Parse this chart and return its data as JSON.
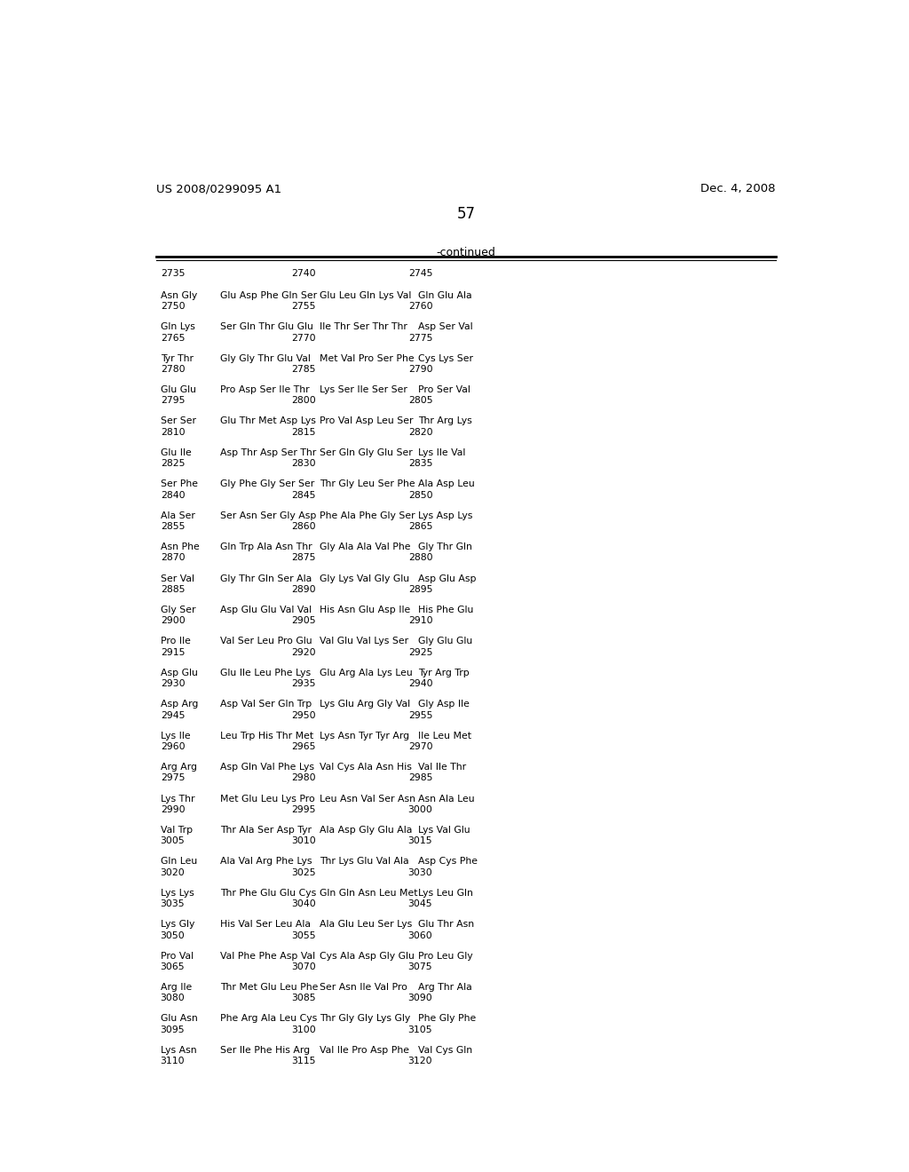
{
  "header_left": "US 2008/0299095 A1",
  "header_right": "Dec. 4, 2008",
  "page_number": "57",
  "continued_label": "-continued",
  "background_color": "#ffffff",
  "text_color": "#000000",
  "first_numbers": [
    "2735",
    "2740",
    "2745"
  ],
  "sequence_data": [
    [
      "Asn Gly",
      "Glu Asp Phe Gln Ser",
      "Glu Leu Gln Lys Val",
      "Gln Glu Ala",
      "2750",
      "2755",
      "2760"
    ],
    [
      "Gln Lys",
      "Ser Gln Thr Glu Glu",
      "Ile Thr Ser Thr Thr",
      "Asp Ser Val",
      "2765",
      "2770",
      "2775"
    ],
    [
      "Tyr Thr",
      "Gly Gly Thr Glu Val",
      "Met Val Pro Ser Phe",
      "Cys Lys Ser",
      "2780",
      "2785",
      "2790"
    ],
    [
      "Glu Glu",
      "Pro Asp Ser Ile Thr",
      "Lys Ser Ile Ser Ser",
      "Pro Ser Val",
      "2795",
      "2800",
      "2805"
    ],
    [
      "Ser Ser",
      "Glu Thr Met Asp Lys",
      "Pro Val Asp Leu Ser",
      "Thr Arg Lys",
      "2810",
      "2815",
      "2820"
    ],
    [
      "Glu Ile",
      "Asp Thr Asp Ser Thr",
      "Ser Gln Gly Glu Ser",
      "Lys Ile Val",
      "2825",
      "2830",
      "2835"
    ],
    [
      "Ser Phe",
      "Gly Phe Gly Ser Ser",
      "Thr Gly Leu Ser Phe",
      "Ala Asp Leu",
      "2840",
      "2845",
      "2850"
    ],
    [
      "Ala Ser",
      "Ser Asn Ser Gly Asp",
      "Phe Ala Phe Gly Ser",
      "Lys Asp Lys",
      "2855",
      "2860",
      "2865"
    ],
    [
      "Asn Phe",
      "Gln Trp Ala Asn Thr",
      "Gly Ala Ala Val Phe",
      "Gly Thr Gln",
      "2870",
      "2875",
      "2880"
    ],
    [
      "Ser Val",
      "Gly Thr Gln Ser Ala",
      "Gly Lys Val Gly Glu",
      "Asp Glu Asp",
      "2885",
      "2890",
      "2895"
    ],
    [
      "Gly Ser",
      "Asp Glu Glu Val Val",
      "His Asn Glu Asp Ile",
      "His Phe Glu",
      "2900",
      "2905",
      "2910"
    ],
    [
      "Pro Ile",
      "Val Ser Leu Pro Glu",
      "Val Glu Val Lys Ser",
      "Gly Glu Glu",
      "2915",
      "2920",
      "2925"
    ],
    [
      "Asp Glu",
      "Glu Ile Leu Phe Lys",
      "Glu Arg Ala Lys Leu",
      "Tyr Arg Trp",
      "2930",
      "2935",
      "2940"
    ],
    [
      "Asp Arg",
      "Asp Val Ser Gln Trp",
      "Lys Glu Arg Gly Val",
      "Gly Asp Ile",
      "2945",
      "2950",
      "2955"
    ],
    [
      "Lys Ile",
      "Leu Trp His Thr Met",
      "Lys Asn Tyr Tyr Arg",
      "Ile Leu Met",
      "2960",
      "2965",
      "2970"
    ],
    [
      "Arg Arg",
      "Asp Gln Val Phe Lys",
      "Val Cys Ala Asn His",
      "Val Ile Thr",
      "2975",
      "2980",
      "2985"
    ],
    [
      "Lys Thr",
      "Met Glu Leu Lys Pro",
      "Leu Asn Val Ser Asn",
      "Asn Ala Leu",
      "2990",
      "2995",
      "3000"
    ],
    [
      "Val Trp",
      "Thr Ala Ser Asp Tyr",
      "Ala Asp Gly Glu Ala",
      "Lys Val Glu",
      "3005",
      "3010",
      "3015"
    ],
    [
      "Gln Leu",
      "Ala Val Arg Phe Lys",
      "Thr Lys Glu Val Ala",
      "Asp Cys Phe",
      "3020",
      "3025",
      "3030"
    ],
    [
      "Lys Lys",
      "Thr Phe Glu Glu Cys",
      "Gln Gln Asn Leu Met",
      "Lys Leu Gln",
      "3035",
      "3040",
      "3045"
    ],
    [
      "Lys Gly",
      "His Val Ser Leu Ala",
      "Ala Glu Leu Ser Lys",
      "Glu Thr Asn",
      "3050",
      "3055",
      "3060"
    ],
    [
      "Pro Val",
      "Val Phe Phe Asp Val",
      "Cys Ala Asp Gly Glu",
      "Pro Leu Gly",
      "3065",
      "3070",
      "3075"
    ],
    [
      "Arg Ile",
      "Thr Met Glu Leu Phe",
      "Ser Asn Ile Val Pro",
      "Arg Thr Ala",
      "3080",
      "3085",
      "3090"
    ],
    [
      "Glu Asn",
      "Phe Arg Ala Leu Cys",
      "Thr Gly Gly Lys Gly",
      "Phe Gly Phe",
      "3095",
      "3100",
      "3105"
    ],
    [
      "Lys Asn",
      "Ser Ile Phe His Arg",
      "Val Ile Pro Asp Phe",
      "Val Cys Gln",
      "3110",
      "3115",
      "3120"
    ]
  ]
}
